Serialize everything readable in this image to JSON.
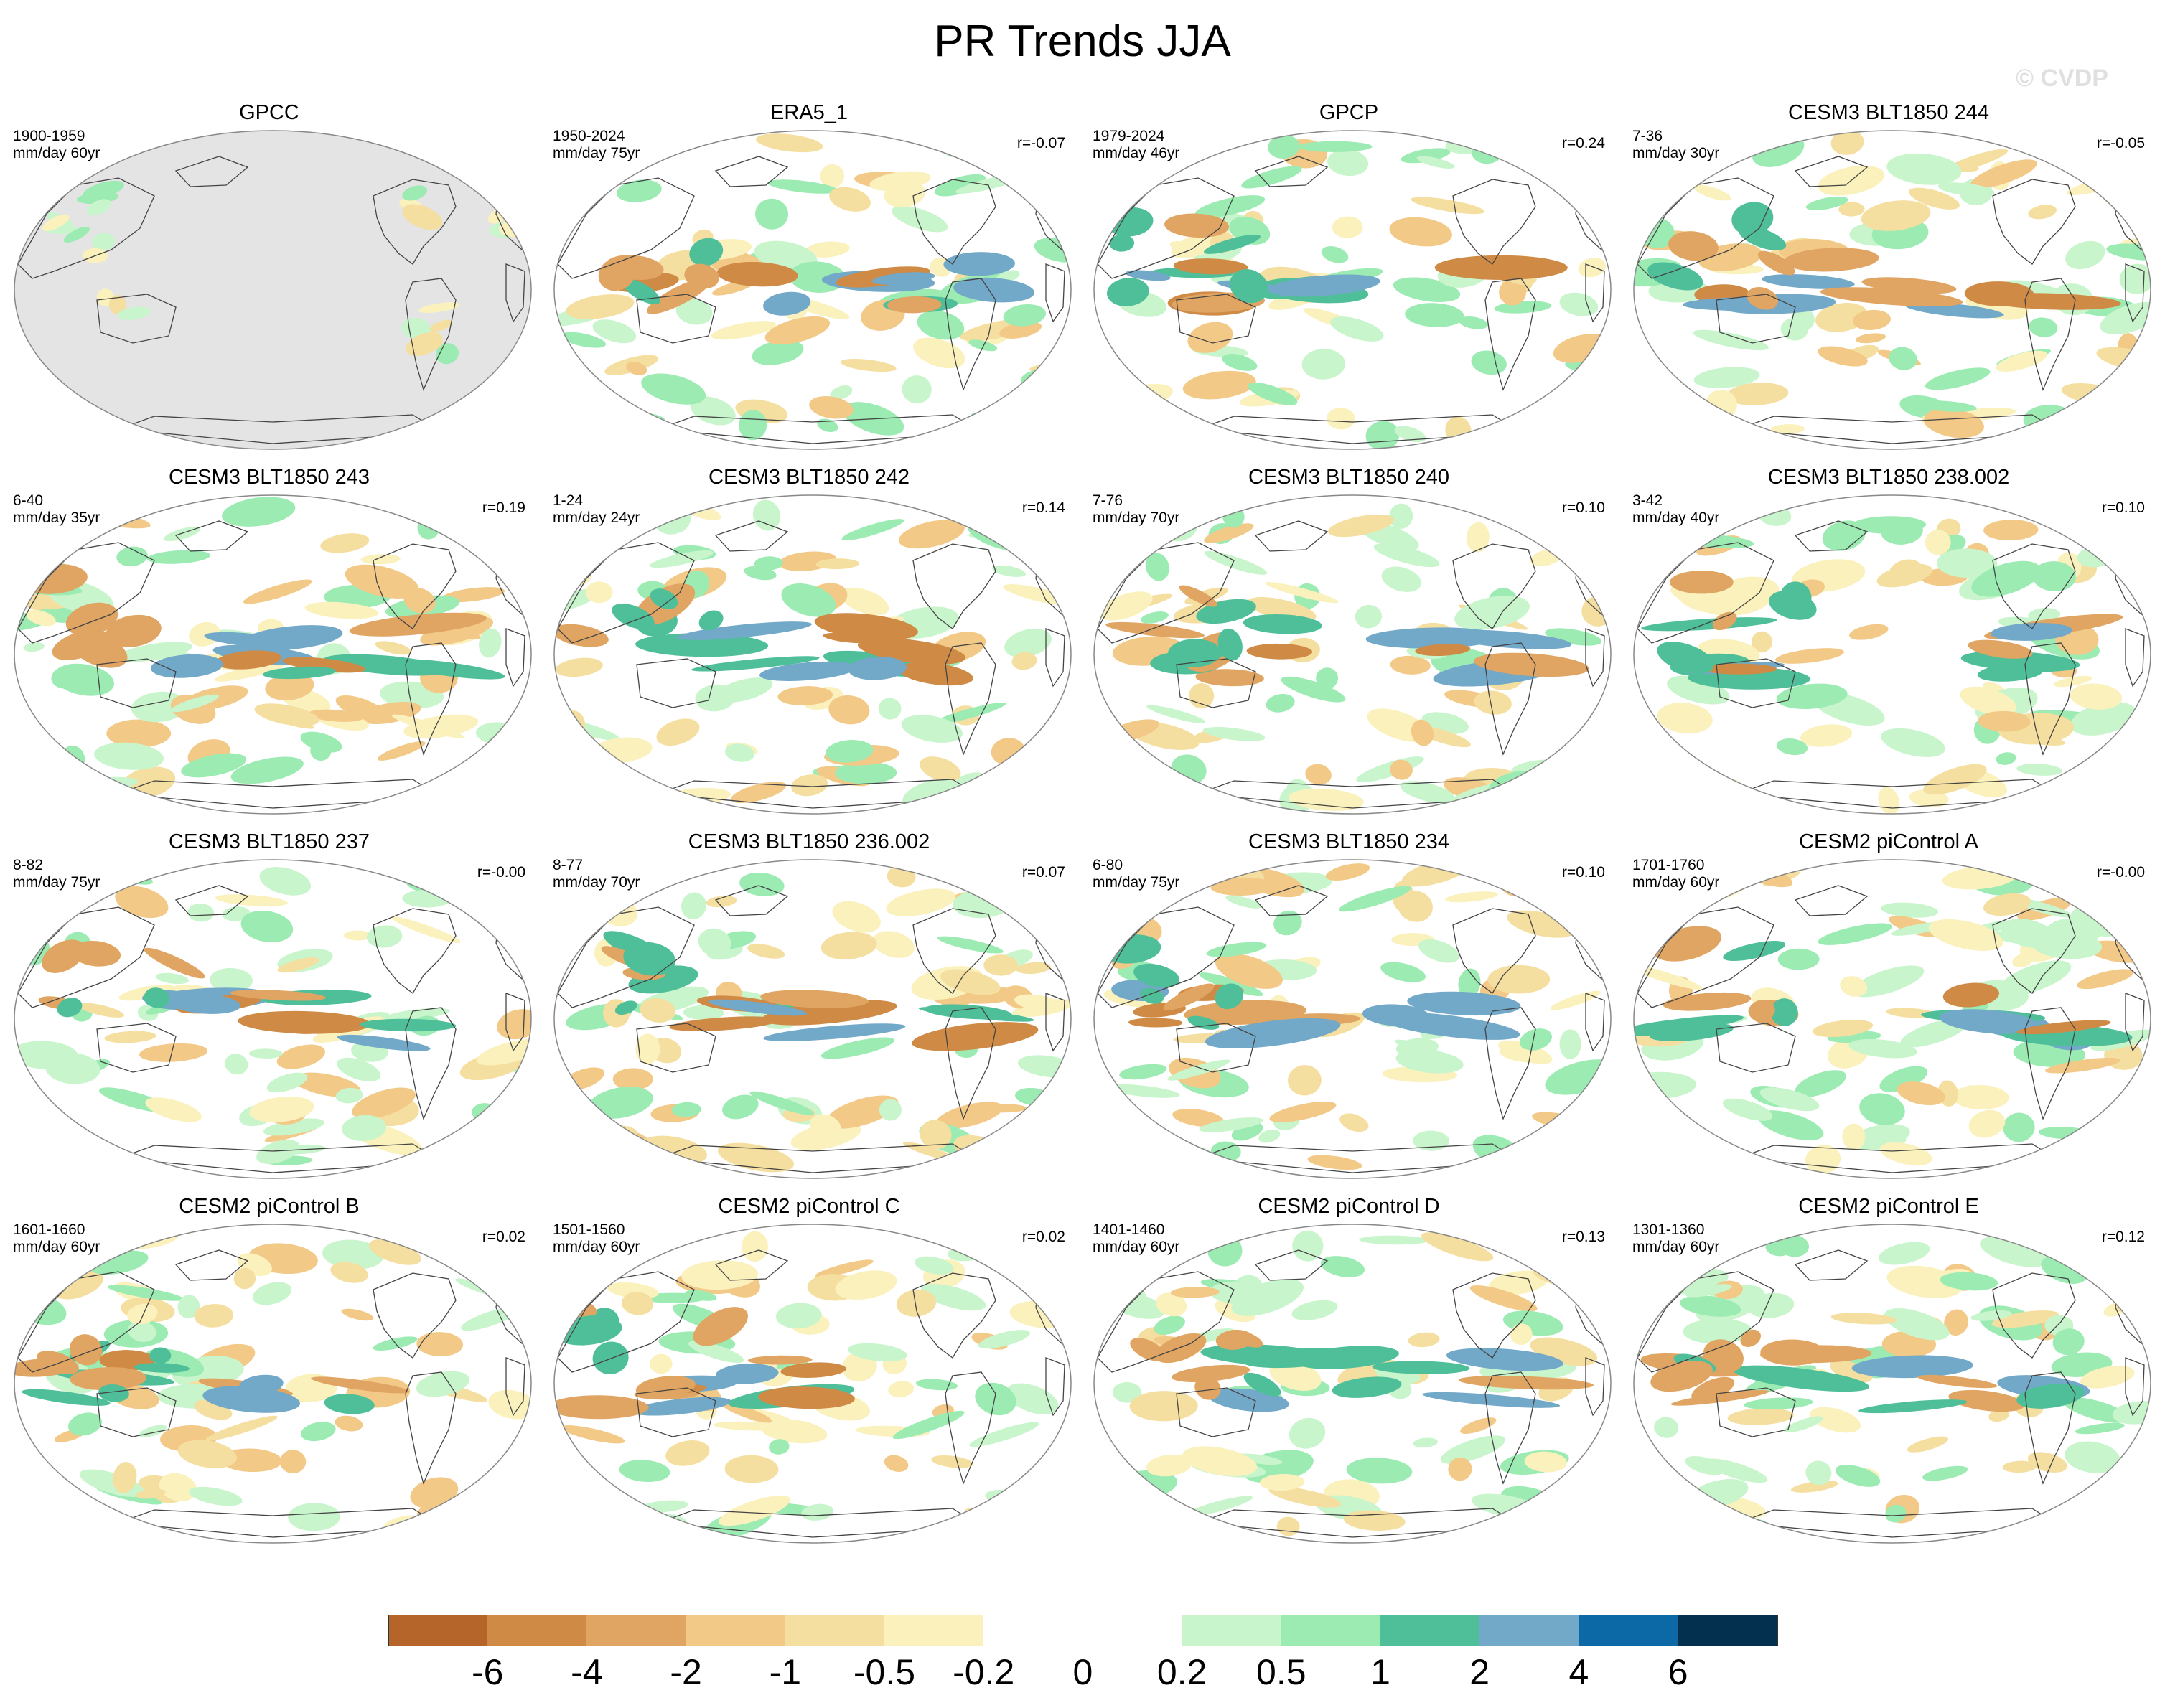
{
  "title": "PR Trends JJA",
  "watermark": "© CVDP",
  "colors": {
    "ocean_missing": "#e4e4e4",
    "coastline": "#444444",
    "frame": "#888888"
  },
  "panels": [
    {
      "title": "GPCC",
      "period": "1900-1959",
      "units": "mm/day 60yr",
      "corr": "",
      "missing_ocean": true
    },
    {
      "title": "ERA5_1",
      "period": "1950-2024",
      "units": "mm/day 75yr",
      "corr": "r=-0.07"
    },
    {
      "title": "GPCP",
      "period": "1979-2024",
      "units": "mm/day 46yr",
      "corr": "r=0.24"
    },
    {
      "title": "CESM3 BLT1850 244",
      "period": "7-36",
      "units": "mm/day 30yr",
      "corr": "r=-0.05"
    },
    {
      "title": "CESM3 BLT1850 243",
      "period": "6-40",
      "units": "mm/day 35yr",
      "corr": "r=0.19"
    },
    {
      "title": "CESM3 BLT1850 242",
      "period": "1-24",
      "units": "mm/day 24yr",
      "corr": "r=0.14"
    },
    {
      "title": "CESM3 BLT1850 240",
      "period": "7-76",
      "units": "mm/day 70yr",
      "corr": "r=0.10"
    },
    {
      "title": "CESM3 BLT1850 238.002",
      "period": "3-42",
      "units": "mm/day 40yr",
      "corr": "r=0.10"
    },
    {
      "title": "CESM3 BLT1850 237",
      "period": "8-82",
      "units": "mm/day 75yr",
      "corr": "r=-0.00"
    },
    {
      "title": "CESM3 BLT1850 236.002",
      "period": "8-77",
      "units": "mm/day 70yr",
      "corr": "r=0.07"
    },
    {
      "title": "CESM3 BLT1850 234",
      "period": "6-80",
      "units": "mm/day 75yr",
      "corr": "r=0.10"
    },
    {
      "title": "CESM2 piControl A",
      "period": "1701-1760",
      "units": "mm/day 60yr",
      "corr": "r=-0.00"
    },
    {
      "title": "CESM2 piControl B",
      "period": "1601-1660",
      "units": "mm/day 60yr",
      "corr": "r=0.02"
    },
    {
      "title": "CESM2 piControl C",
      "period": "1501-1560",
      "units": "mm/day 60yr",
      "corr": "r=0.02"
    },
    {
      "title": "CESM2 piControl D",
      "period": "1401-1460",
      "units": "mm/day 60yr",
      "corr": "r=0.13"
    },
    {
      "title": "CESM2 piControl E",
      "period": "1301-1360",
      "units": "mm/day 60yr",
      "corr": "r=0.12"
    }
  ],
  "colorbar": {
    "colors": [
      "#b5652a",
      "#cf8a45",
      "#e0a562",
      "#f2c987",
      "#f5dfa0",
      "#fbf1bd",
      "#ffffff",
      "#ffffff",
      "#c9f5cc",
      "#9bebb3",
      "#4fbf9a",
      "#72a8c8",
      "#0d69a6",
      "#043050"
    ],
    "labels": [
      "-6",
      "-4",
      "-2",
      "-1",
      "-0.5",
      "-0.2",
      "0",
      "0.2",
      "0.5",
      "1",
      "2",
      "4",
      "6"
    ]
  }
}
